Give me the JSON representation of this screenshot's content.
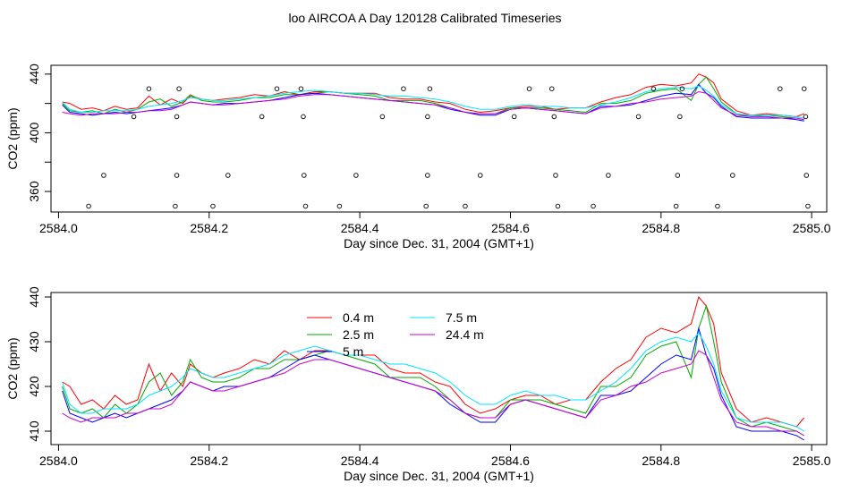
{
  "figure": {
    "title": "loo AIRCOA A  Day 120128  Calibrated Timeseries"
  },
  "chart_data": [
    {
      "type": "line+scatter",
      "title": "",
      "xlabel": "Day since Dec. 31, 2004 (GMT+1)",
      "ylabel": "CO2 (ppm)",
      "xlim": [
        2583.99,
        2585.02
      ],
      "ylim": [
        346,
        446
      ],
      "x_ticks": [
        "2584.0",
        "2584.2",
        "2584.4",
        "2584.6",
        "2584.8",
        "2585.0"
      ],
      "y_ticks": [
        "360",
        "400",
        "440"
      ],
      "y_tick_values": [
        360,
        380,
        400,
        420,
        440
      ],
      "scatter_points": [
        {
          "x": 2584.04,
          "y": 350
        },
        {
          "x": 2584.06,
          "y": 371
        },
        {
          "x": 2584.1,
          "y": 411
        },
        {
          "x": 2584.12,
          "y": 430
        },
        {
          "x": 2584.155,
          "y": 350
        },
        {
          "x": 2584.157,
          "y": 371
        },
        {
          "x": 2584.157,
          "y": 411
        },
        {
          "x": 2584.16,
          "y": 430
        },
        {
          "x": 2584.205,
          "y": 350
        },
        {
          "x": 2584.225,
          "y": 371
        },
        {
          "x": 2584.27,
          "y": 411
        },
        {
          "x": 2584.29,
          "y": 430
        },
        {
          "x": 2584.322,
          "y": 430
        },
        {
          "x": 2584.325,
          "y": 411
        },
        {
          "x": 2584.326,
          "y": 371
        },
        {
          "x": 2584.328,
          "y": 350
        },
        {
          "x": 2584.373,
          "y": 350
        },
        {
          "x": 2584.395,
          "y": 371
        },
        {
          "x": 2584.43,
          "y": 411
        },
        {
          "x": 2584.458,
          "y": 430
        },
        {
          "x": 2584.488,
          "y": 350
        },
        {
          "x": 2584.49,
          "y": 371
        },
        {
          "x": 2584.49,
          "y": 411
        },
        {
          "x": 2584.493,
          "y": 430
        },
        {
          "x": 2584.54,
          "y": 350
        },
        {
          "x": 2584.56,
          "y": 371
        },
        {
          "x": 2584.605,
          "y": 411
        },
        {
          "x": 2584.625,
          "y": 430
        },
        {
          "x": 2584.655,
          "y": 430
        },
        {
          "x": 2584.658,
          "y": 411
        },
        {
          "x": 2584.66,
          "y": 371
        },
        {
          "x": 2584.663,
          "y": 350
        },
        {
          "x": 2584.71,
          "y": 350
        },
        {
          "x": 2584.73,
          "y": 371
        },
        {
          "x": 2584.77,
          "y": 411
        },
        {
          "x": 2584.79,
          "y": 430
        },
        {
          "x": 2584.82,
          "y": 350
        },
        {
          "x": 2584.822,
          "y": 371
        },
        {
          "x": 2584.825,
          "y": 411
        },
        {
          "x": 2584.828,
          "y": 430
        },
        {
          "x": 2584.875,
          "y": 350
        },
        {
          "x": 2584.895,
          "y": 371
        },
        {
          "x": 2584.958,
          "y": 430
        },
        {
          "x": 2584.99,
          "y": 430
        },
        {
          "x": 2584.992,
          "y": 411
        },
        {
          "x": 2584.993,
          "y": 371
        },
        {
          "x": 2584.995,
          "y": 350
        }
      ],
      "series_ref": "shared"
    },
    {
      "type": "line",
      "title": "",
      "xlabel": "Day since Dec. 31, 2004 (GMT+1)",
      "ylabel": "CO2 (ppm)",
      "xlim": [
        2583.99,
        2585.02
      ],
      "ylim": [
        407,
        441
      ],
      "x_ticks": [
        "2584.0",
        "2584.2",
        "2584.4",
        "2584.6",
        "2584.8",
        "2585.0"
      ],
      "y_ticks": [
        "410",
        "420",
        "430",
        "440"
      ],
      "legend": {
        "placement": "top-left",
        "columns": 2
      },
      "series_ref": "shared"
    }
  ],
  "series": [
    {
      "name": "0.4 m",
      "color": "#ff0000",
      "x": [
        2584.005,
        2584.015,
        2584.03,
        2584.045,
        2584.06,
        2584.075,
        2584.09,
        2584.105,
        2584.12,
        2584.135,
        2584.15,
        2584.165,
        2584.175,
        2584.19,
        2584.205,
        2584.22,
        2584.24,
        2584.26,
        2584.28,
        2584.3,
        2584.32,
        2584.34,
        2584.36,
        2584.38,
        2584.4,
        2584.42,
        2584.44,
        2584.46,
        2584.48,
        2584.5,
        2584.52,
        2584.54,
        2584.56,
        2584.58,
        2584.6,
        2584.62,
        2584.64,
        2584.66,
        2584.68,
        2584.7,
        2584.72,
        2584.74,
        2584.76,
        2584.78,
        2584.8,
        2584.82,
        2584.84,
        2584.85,
        2584.86,
        2584.87,
        2584.88,
        2584.9,
        2584.92,
        2584.94,
        2584.96,
        2584.98,
        2584.99
      ],
      "y": [
        421,
        420,
        416,
        417,
        415,
        418,
        416,
        417,
        425,
        419,
        423,
        420,
        425,
        423,
        422,
        423,
        424,
        426,
        425,
        428,
        426,
        428,
        428,
        427,
        427,
        427,
        424,
        423,
        423,
        421,
        420,
        416,
        414,
        415,
        417,
        418,
        418,
        416,
        417,
        417,
        421,
        424,
        426,
        431,
        433,
        432,
        434,
        440,
        438,
        434,
        423,
        415,
        412,
        413,
        412,
        411,
        413
      ]
    },
    {
      "name": "2.5 m",
      "color": "#00aa00",
      "x": [
        2584.005,
        2584.015,
        2584.03,
        2584.045,
        2584.06,
        2584.075,
        2584.09,
        2584.105,
        2584.12,
        2584.135,
        2584.15,
        2584.165,
        2584.175,
        2584.19,
        2584.205,
        2584.22,
        2584.24,
        2584.26,
        2584.28,
        2584.3,
        2584.32,
        2584.34,
        2584.36,
        2584.38,
        2584.4,
        2584.42,
        2584.44,
        2584.46,
        2584.48,
        2584.5,
        2584.52,
        2584.54,
        2584.56,
        2584.58,
        2584.6,
        2584.62,
        2584.64,
        2584.66,
        2584.68,
        2584.7,
        2584.72,
        2584.74,
        2584.76,
        2584.78,
        2584.8,
        2584.82,
        2584.84,
        2584.85,
        2584.86,
        2584.87,
        2584.88,
        2584.9,
        2584.92,
        2584.94,
        2584.96,
        2584.98,
        2584.99
      ],
      "y": [
        420,
        415,
        414,
        415,
        413,
        416,
        414,
        416,
        421,
        423,
        418,
        421,
        426,
        422,
        421,
        421,
        422,
        424,
        424,
        426,
        426,
        427,
        428,
        427,
        426,
        425,
        422,
        422,
        422,
        420,
        417,
        414,
        413,
        413,
        417,
        417,
        417,
        416,
        415,
        414,
        420,
        420,
        422,
        427,
        429,
        430,
        422,
        433,
        438,
        430,
        421,
        413,
        411,
        412,
        411,
        410,
        409
      ]
    },
    {
      "name": "5 m",
      "color": "#0000ff",
      "x": [
        2584.005,
        2584.015,
        2584.03,
        2584.045,
        2584.06,
        2584.075,
        2584.09,
        2584.105,
        2584.12,
        2584.135,
        2584.15,
        2584.165,
        2584.175,
        2584.19,
        2584.205,
        2584.22,
        2584.24,
        2584.26,
        2584.28,
        2584.3,
        2584.32,
        2584.34,
        2584.36,
        2584.38,
        2584.4,
        2584.42,
        2584.44,
        2584.46,
        2584.48,
        2584.5,
        2584.52,
        2584.54,
        2584.56,
        2584.58,
        2584.6,
        2584.62,
        2584.64,
        2584.66,
        2584.68,
        2584.7,
        2584.72,
        2584.74,
        2584.76,
        2584.78,
        2584.8,
        2584.82,
        2584.84,
        2584.85,
        2584.86,
        2584.87,
        2584.88,
        2584.9,
        2584.92,
        2584.94,
        2584.96,
        2584.98,
        2584.99
      ],
      "y": [
        419,
        414,
        413,
        412,
        413,
        414,
        413,
        414,
        415,
        416,
        417,
        419,
        421,
        420,
        419,
        420,
        420,
        421,
        422,
        424,
        426,
        427,
        426,
        425,
        424,
        423,
        422,
        421,
        420,
        419,
        416,
        414,
        412,
        412,
        416,
        417,
        416,
        415,
        414,
        413,
        418,
        418,
        419,
        422,
        425,
        427,
        426,
        433,
        427,
        424,
        418,
        411,
        410,
        410,
        410,
        409,
        408
      ]
    },
    {
      "name": "7.5 m",
      "color": "#00e5ff",
      "x": [
        2584.005,
        2584.015,
        2584.03,
        2584.045,
        2584.06,
        2584.075,
        2584.09,
        2584.105,
        2584.12,
        2584.135,
        2584.15,
        2584.165,
        2584.175,
        2584.19,
        2584.205,
        2584.22,
        2584.24,
        2584.26,
        2584.28,
        2584.3,
        2584.32,
        2584.34,
        2584.36,
        2584.38,
        2584.4,
        2584.42,
        2584.44,
        2584.46,
        2584.48,
        2584.5,
        2584.52,
        2584.54,
        2584.56,
        2584.58,
        2584.6,
        2584.62,
        2584.64,
        2584.66,
        2584.68,
        2584.7,
        2584.72,
        2584.74,
        2584.76,
        2584.78,
        2584.8,
        2584.82,
        2584.84,
        2584.85,
        2584.86,
        2584.87,
        2584.88,
        2584.9,
        2584.92,
        2584.94,
        2584.96,
        2584.98,
        2584.99
      ],
      "y": [
        421,
        416,
        414,
        414,
        415,
        415,
        415,
        416,
        418,
        419,
        420,
        422,
        424,
        423,
        422,
        422,
        423,
        424,
        425,
        427,
        428,
        429,
        428,
        427,
        427,
        426,
        425,
        425,
        424,
        423,
        421,
        418,
        416,
        416,
        418,
        419,
        418,
        418,
        417,
        417,
        419,
        421,
        424,
        428,
        430,
        431,
        430,
        432,
        429,
        425,
        419,
        413,
        412,
        412,
        412,
        411,
        410
      ]
    },
    {
      "name": "24.4 m",
      "color": "#cc00cc",
      "x": [
        2584.005,
        2584.015,
        2584.03,
        2584.045,
        2584.06,
        2584.075,
        2584.09,
        2584.105,
        2584.12,
        2584.135,
        2584.15,
        2584.165,
        2584.175,
        2584.19,
        2584.205,
        2584.22,
        2584.24,
        2584.26,
        2584.28,
        2584.3,
        2584.32,
        2584.34,
        2584.36,
        2584.38,
        2584.4,
        2584.42,
        2584.44,
        2584.46,
        2584.48,
        2584.5,
        2584.52,
        2584.54,
        2584.56,
        2584.58,
        2584.6,
        2584.62,
        2584.64,
        2584.66,
        2584.68,
        2584.7,
        2584.72,
        2584.74,
        2584.76,
        2584.78,
        2584.8,
        2584.82,
        2584.84,
        2584.85,
        2584.86,
        2584.87,
        2584.88,
        2584.9,
        2584.92,
        2584.94,
        2584.96,
        2584.98,
        2584.99
      ],
      "y": [
        414,
        413,
        412,
        413,
        413,
        413,
        414,
        414,
        415,
        415,
        416,
        419,
        421,
        420,
        419,
        419,
        420,
        421,
        422,
        423,
        425,
        426,
        426,
        425,
        424,
        423,
        422,
        421,
        420,
        419,
        417,
        414,
        413,
        413,
        416,
        417,
        416,
        415,
        414,
        413,
        417,
        418,
        420,
        421,
        423,
        424,
        425,
        428,
        427,
        422,
        417,
        412,
        411,
        411,
        410,
        410,
        409
      ]
    }
  ]
}
